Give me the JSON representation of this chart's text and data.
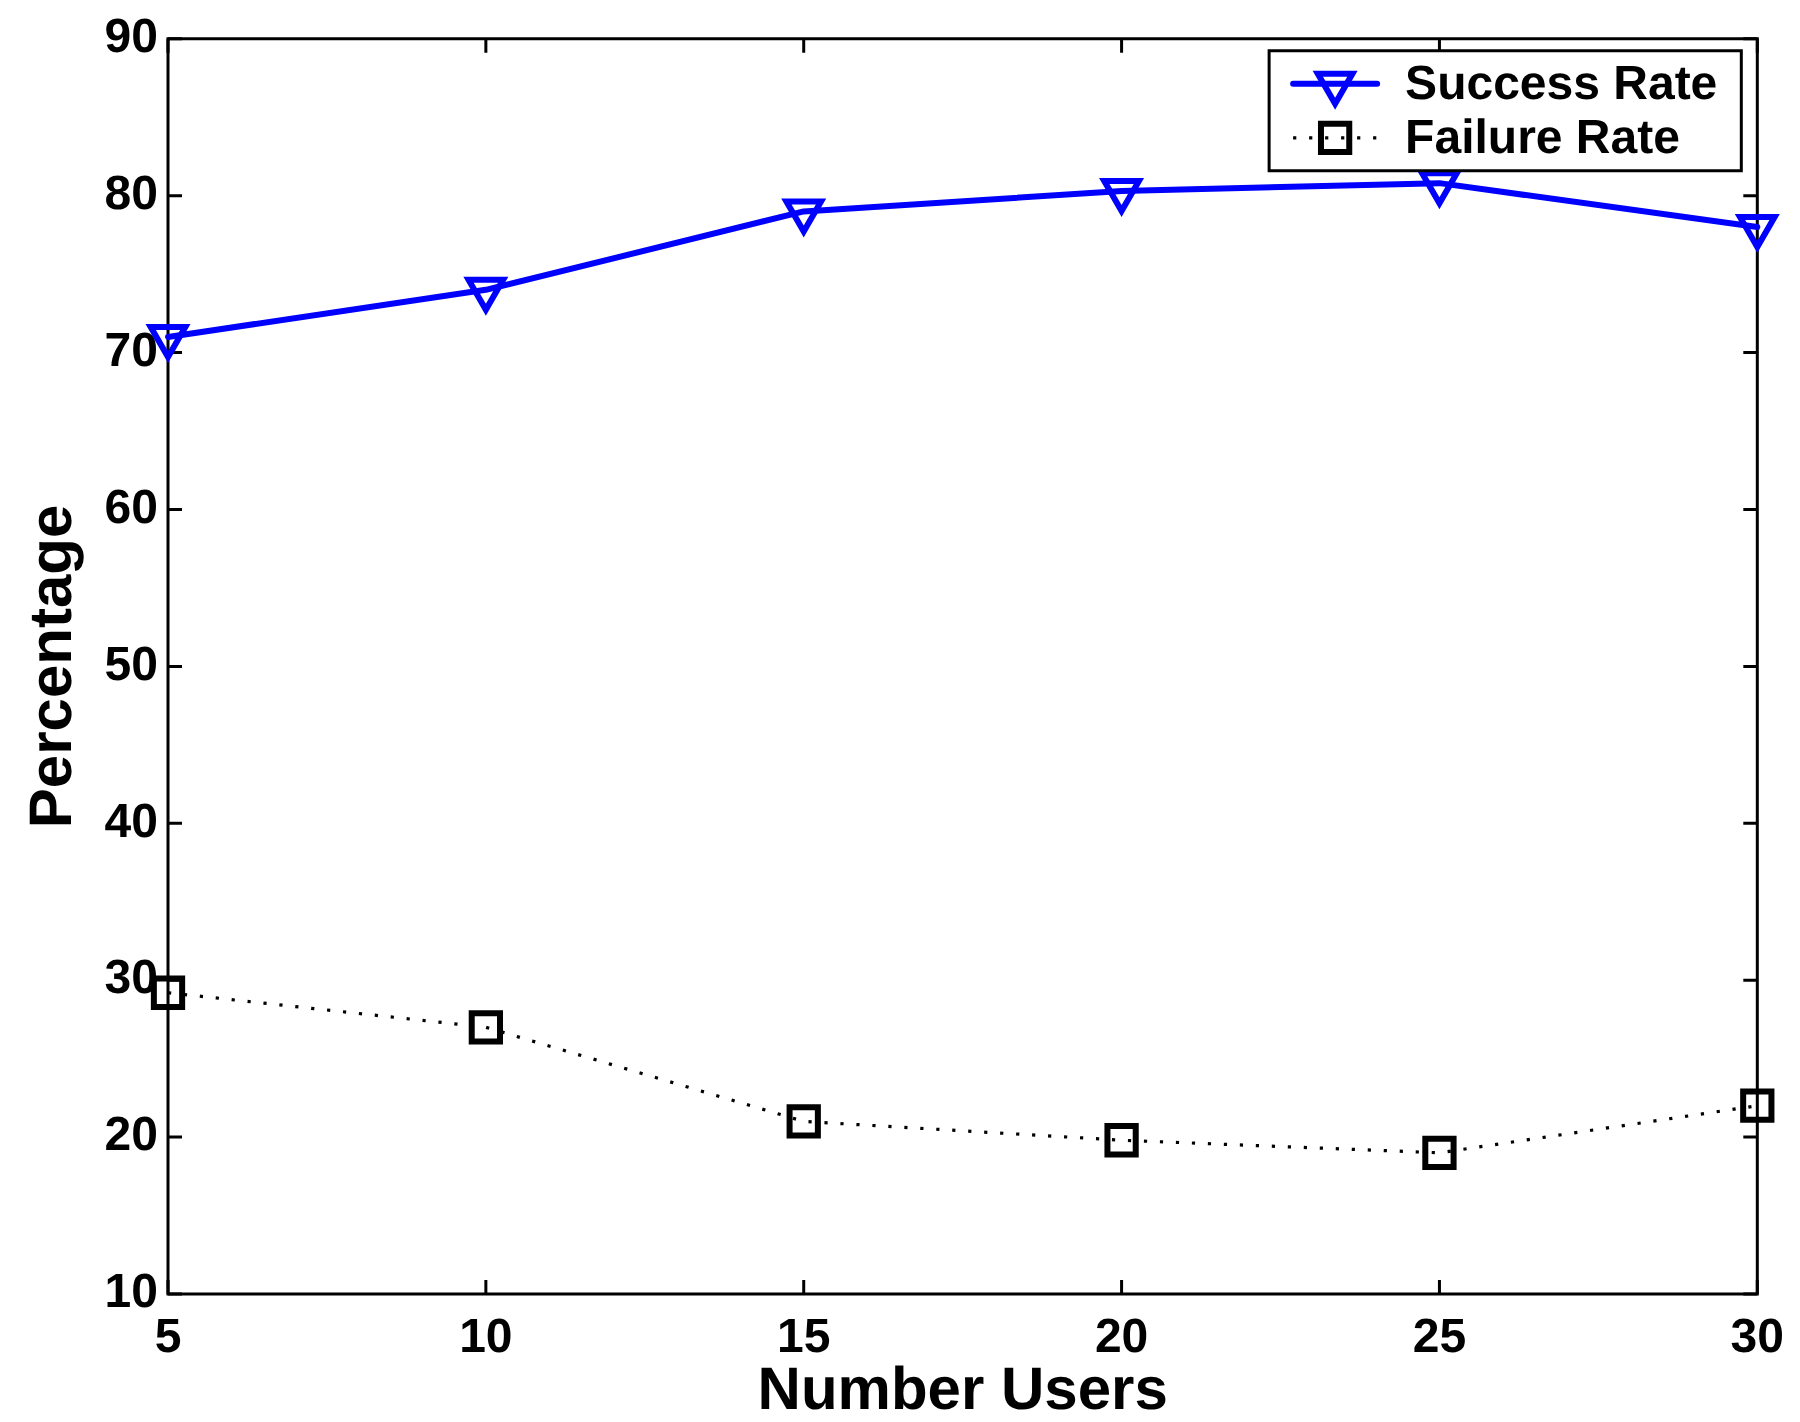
{
  "chart_data": {
    "type": "line",
    "xlabel": "Number Users",
    "ylabel": "Percentage",
    "x": [
      5,
      10,
      15,
      20,
      25,
      30
    ],
    "series": [
      {
        "name": "Success Rate",
        "color": "#0000ff",
        "values": [
          71,
          74,
          79,
          80.3,
          80.8,
          78
        ],
        "marker": "triangle",
        "line_style": "solid"
      },
      {
        "name": "Failure Rate",
        "color": "#000000",
        "values": [
          29.2,
          27,
          21,
          19.8,
          19,
          22
        ],
        "marker": "square",
        "line_style": "dotted"
      }
    ],
    "xlim": [
      5,
      30
    ],
    "xticks": [
      5,
      10,
      15,
      20,
      25,
      30
    ],
    "ylim": [
      10,
      90
    ],
    "yticks": [
      10,
      20,
      30,
      40,
      50,
      60,
      70,
      80,
      90
    ],
    "grid": false,
    "legend": "top right"
  }
}
